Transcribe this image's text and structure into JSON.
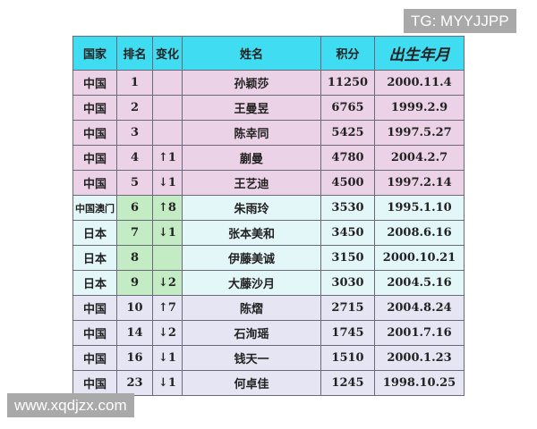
{
  "headers": [
    "国家",
    "排名",
    "变化",
    "姓名",
    "积分",
    "出生年月"
  ],
  "rows": [
    {
      "country": "中国",
      "rank": "1",
      "change": "",
      "dir": "",
      "name": "孙颖莎",
      "points": "11250",
      "birth": "2000.11.4",
      "group": "pink"
    },
    {
      "country": "中国",
      "rank": "2",
      "change": "",
      "dir": "",
      "name": "王曼昱",
      "points": "6765",
      "birth": "1999.2.9",
      "group": "pink"
    },
    {
      "country": "中国",
      "rank": "3",
      "change": "",
      "dir": "",
      "name": "陈幸同",
      "points": "5425",
      "birth": "1997.5.27",
      "group": "pink"
    },
    {
      "country": "中国",
      "rank": "4",
      "change": "↑1",
      "dir": "up",
      "name": "蒯曼",
      "points": "4780",
      "birth": "2004.2.7",
      "group": "pink"
    },
    {
      "country": "中国",
      "rank": "5",
      "change": "↓1",
      "dir": "down",
      "name": "王艺迪",
      "points": "4500",
      "birth": "1997.2.14",
      "group": "pink"
    },
    {
      "country": "中国澳门",
      "rank": "6",
      "change": "↑8",
      "dir": "up",
      "name": "朱雨玲",
      "points": "3530",
      "birth": "1995.1.10",
      "group": "cyan"
    },
    {
      "country": "日本",
      "rank": "7",
      "change": "↓1",
      "dir": "down",
      "name": "张本美和",
      "points": "3450",
      "birth": "2008.6.16",
      "group": "cyan"
    },
    {
      "country": "日本",
      "rank": "8",
      "change": "",
      "dir": "",
      "name": "伊藤美诚",
      "points": "3150",
      "birth": "2000.10.21",
      "group": "cyan"
    },
    {
      "country": "日本",
      "rank": "9",
      "change": "↓2",
      "dir": "down",
      "name": "大藤沙月",
      "points": "3030",
      "birth": "2004.5.16",
      "group": "cyan"
    },
    {
      "country": "中国",
      "rank": "10",
      "change": "↑7",
      "dir": "up",
      "name": "陈熠",
      "points": "2715",
      "birth": "2004.8.24",
      "group": "lav"
    },
    {
      "country": "中国",
      "rank": "14",
      "change": "↓2",
      "dir": "down",
      "name": "石洵瑶",
      "points": "1745",
      "birth": "2001.7.16",
      "group": "lav"
    },
    {
      "country": "中国",
      "rank": "16",
      "change": "↓1",
      "dir": "down",
      "name": "钱天一",
      "points": "1510",
      "birth": "2000.1.23",
      "group": "lav"
    },
    {
      "country": "中国",
      "rank": "23",
      "change": "↓1",
      "dir": "down",
      "name": "何卓佳",
      "points": "1245",
      "birth": "1998.10.25",
      "group": "lav"
    }
  ],
  "watermark_top": "TG: MYYJJPP",
  "watermark_bottom": "www.xqdjzx.com",
  "colors": {
    "header": "#3fdcf2",
    "pink": "#ecd2e6",
    "cyan": "#e3f6f8",
    "green": "#c3ebc4",
    "lavender": "#e5e5f3",
    "down": "#c0305a"
  }
}
